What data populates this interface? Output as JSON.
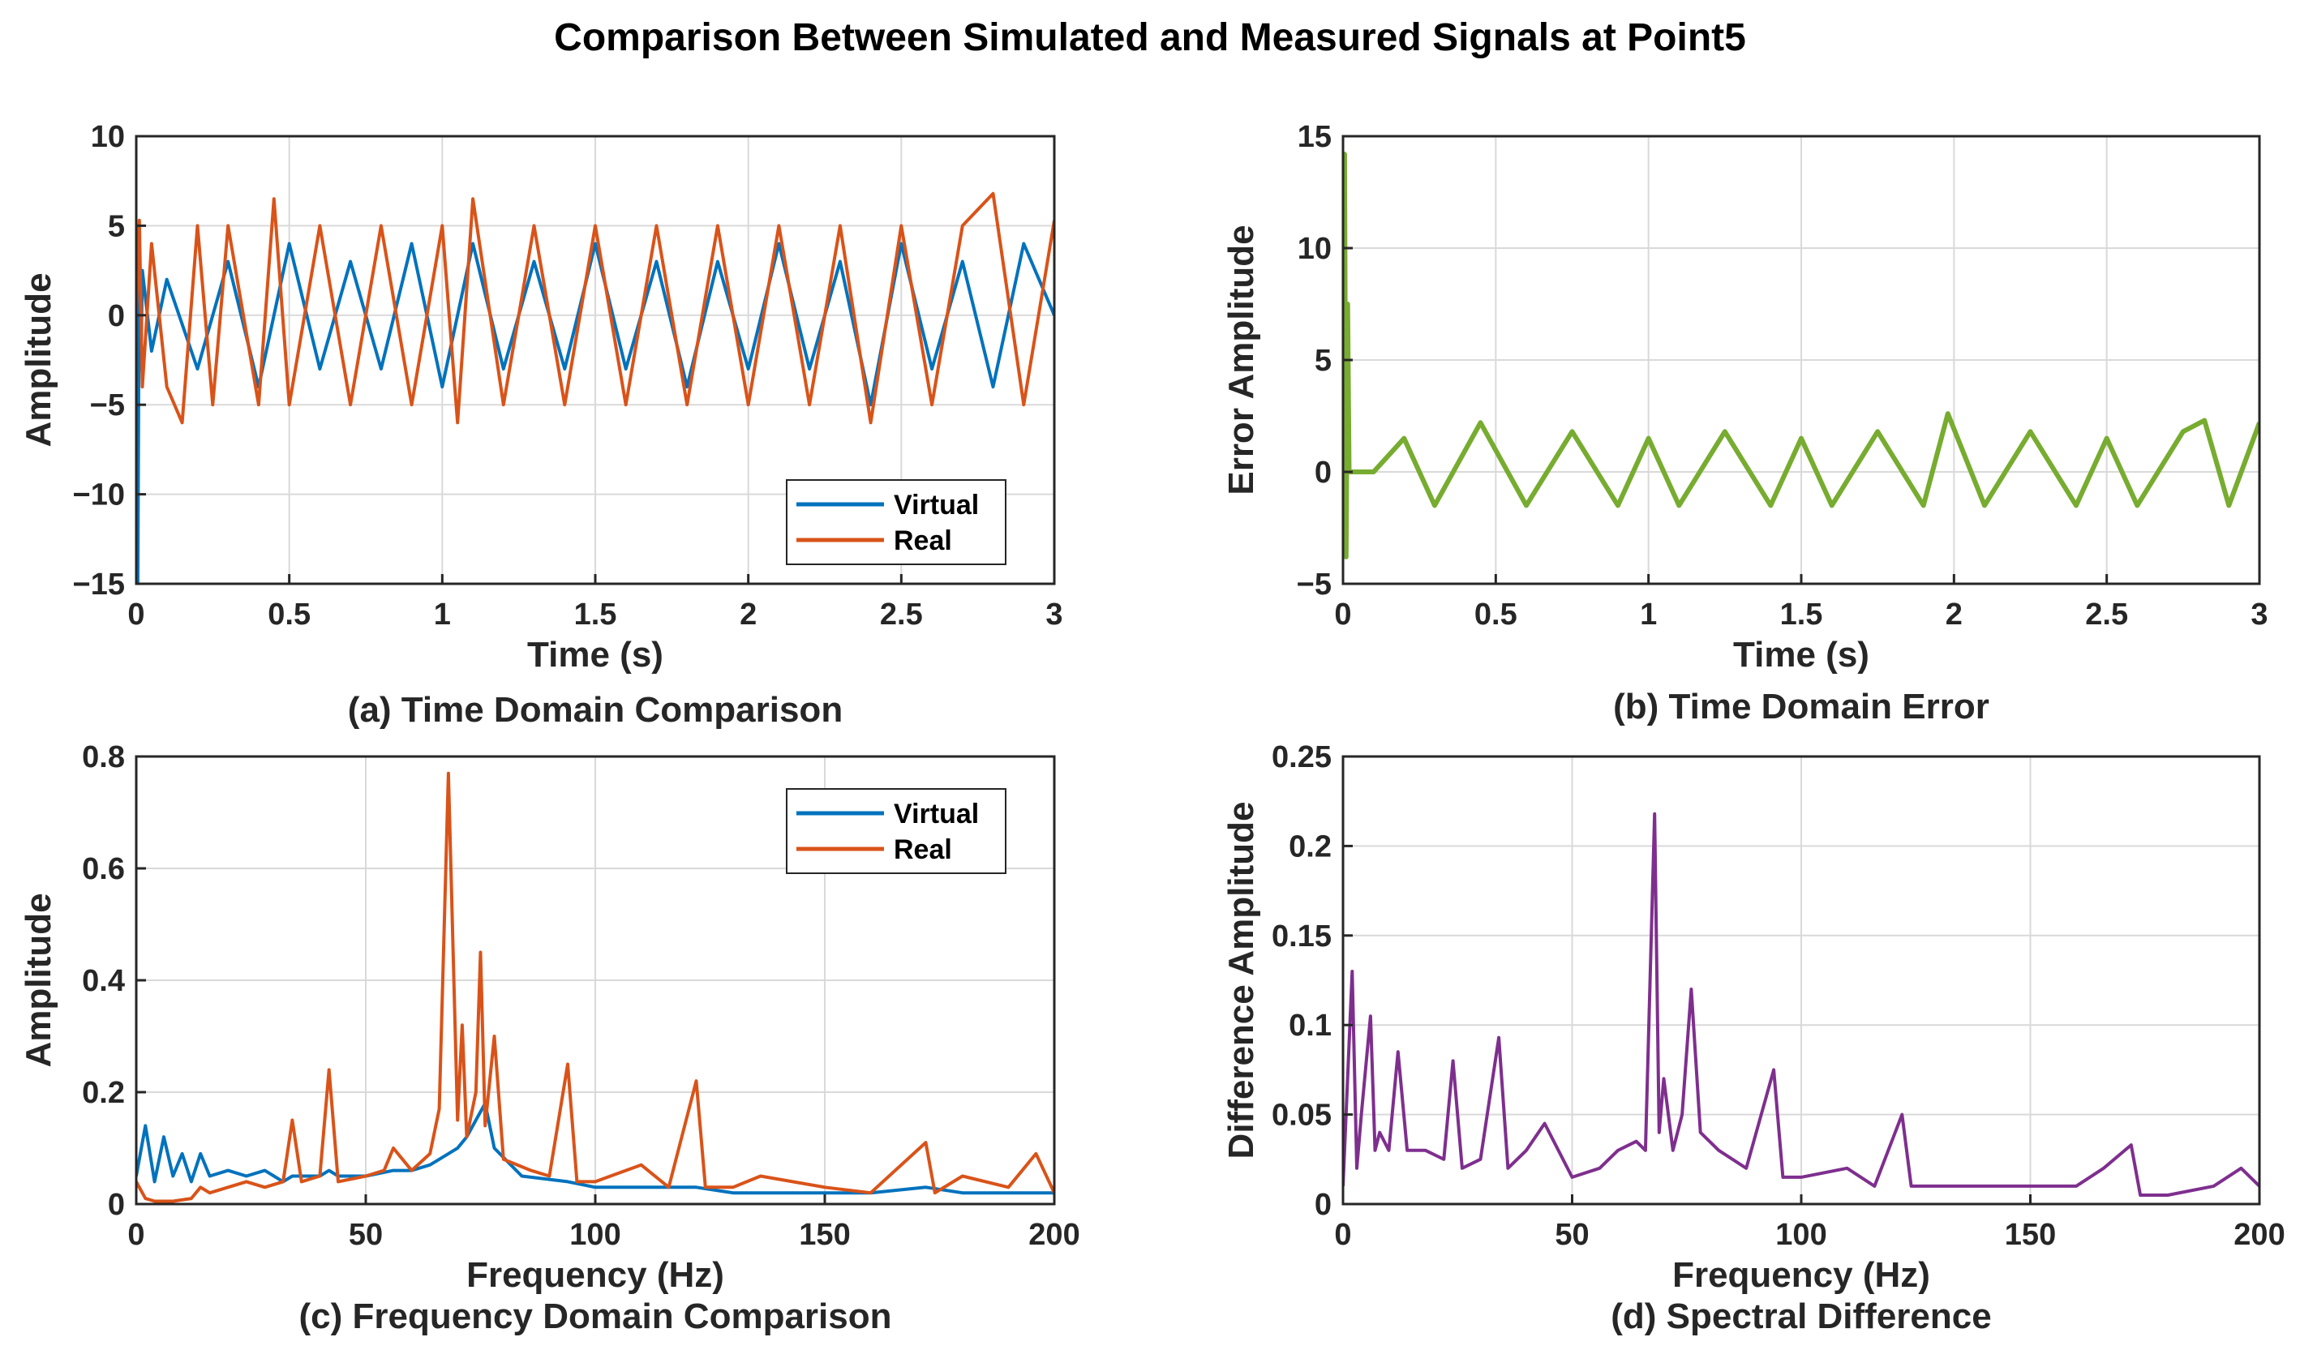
{
  "figure": {
    "title": "Comparison Between Simulated and Measured Signals at Point5"
  },
  "colors": {
    "virtual": "#0072BD",
    "real": "#D95319",
    "error": "#77AC30",
    "difference": "#7E2F8E"
  },
  "chart_data": [
    {
      "id": "a",
      "type": "line",
      "caption": "(a) Time Domain Comparison",
      "xlabel": "Time (s)",
      "ylabel": "Amplitude",
      "xlim": [
        0,
        3
      ],
      "ylim": [
        -15,
        10
      ],
      "xticks": [
        0,
        0.5,
        1,
        1.5,
        2,
        2.5,
        3
      ],
      "xtick_labels": [
        "0",
        "0.5",
        "1",
        "1.5",
        "2",
        "2.5",
        "3"
      ],
      "yticks": [
        -15,
        -10,
        -5,
        0,
        5,
        10
      ],
      "ytick_labels": [
        "−15",
        "−10",
        "−5",
        "0",
        "5",
        "10"
      ],
      "grid": true,
      "legend": {
        "position": "bottom-right",
        "entries": [
          "Virtual",
          "Real"
        ]
      },
      "series": [
        {
          "name": "Virtual",
          "color": "#0072BD",
          "x": [
            0,
            0.005,
            0.01,
            0.015,
            0.02,
            0.05,
            0.1,
            0.2,
            0.3,
            0.4,
            0.5,
            0.6,
            0.7,
            0.8,
            0.9,
            1.0,
            1.1,
            1.2,
            1.3,
            1.4,
            1.5,
            1.6,
            1.7,
            1.8,
            1.9,
            2.0,
            2.1,
            2.2,
            2.3,
            2.4,
            2.5,
            2.6,
            2.7,
            2.8,
            2.9,
            3.0
          ],
          "y": [
            0,
            -15,
            4.5,
            -3,
            2.5,
            -2,
            2,
            -3,
            3,
            -4,
            4,
            -3,
            3,
            -3,
            4,
            -4,
            4,
            -3,
            3,
            -3,
            4,
            -3,
            3,
            -4,
            3,
            -3,
            4,
            -3,
            3,
            -5,
            4,
            -3,
            3,
            -4,
            4,
            0
          ]
        },
        {
          "name": "Real",
          "color": "#D95319",
          "x": [
            0,
            0.01,
            0.02,
            0.05,
            0.1,
            0.15,
            0.2,
            0.25,
            0.3,
            0.4,
            0.45,
            0.5,
            0.6,
            0.7,
            0.8,
            0.9,
            1.0,
            1.05,
            1.1,
            1.2,
            1.3,
            1.4,
            1.5,
            1.6,
            1.7,
            1.8,
            1.9,
            2.0,
            2.1,
            2.2,
            2.3,
            2.4,
            2.5,
            2.6,
            2.7,
            2.8,
            2.9,
            3.0
          ],
          "y": [
            0,
            5.3,
            -4,
            4,
            -4,
            -6,
            5,
            -5,
            5,
            -5,
            6.5,
            -5,
            5,
            -5,
            5,
            -5,
            5,
            -6,
            6.5,
            -5,
            5,
            -5,
            5,
            -5,
            5,
            -5,
            5,
            -5,
            5,
            -5,
            5,
            -6,
            5,
            -5,
            5,
            6.8,
            -5,
            5.3
          ]
        }
      ]
    },
    {
      "id": "b",
      "type": "line",
      "caption": "(b) Time Domain Error",
      "xlabel": "Time (s)",
      "ylabel": "Error Amplitude",
      "xlim": [
        0,
        3
      ],
      "ylim": [
        -5,
        15
      ],
      "xticks": [
        0,
        0.5,
        1,
        1.5,
        2,
        2.5,
        3
      ],
      "xtick_labels": [
        "0",
        "0.5",
        "1",
        "1.5",
        "2",
        "2.5",
        "3"
      ],
      "yticks": [
        -5,
        0,
        5,
        10,
        15
      ],
      "ytick_labels": [
        "−5",
        "0",
        "5",
        "10",
        "15"
      ],
      "grid": true,
      "series": [
        {
          "color": "#77AC30",
          "x": [
            0,
            0.005,
            0.01,
            0.015,
            0.02,
            0.05,
            0.1,
            0.2,
            0.3,
            0.45,
            0.6,
            0.75,
            0.9,
            1.0,
            1.1,
            1.25,
            1.4,
            1.5,
            1.6,
            1.75,
            1.9,
            1.98,
            2.1,
            2.25,
            2.4,
            2.5,
            2.6,
            2.75,
            2.82,
            2.9,
            3.0
          ],
          "y": [
            0,
            14.2,
            -3.8,
            7.5,
            0,
            0,
            0,
            1.5,
            -1.5,
            2.2,
            -1.5,
            1.8,
            -1.5,
            1.5,
            -1.5,
            1.8,
            -1.5,
            1.5,
            -1.5,
            1.8,
            -1.5,
            2.6,
            -1.5,
            1.8,
            -1.5,
            1.5,
            -1.5,
            1.8,
            2.3,
            -1.5,
            2.2
          ]
        }
      ]
    },
    {
      "id": "c",
      "type": "line",
      "caption": "(c) Frequency Domain Comparison",
      "xlabel": "Frequency (Hz)",
      "ylabel": "Amplitude",
      "xlim": [
        0,
        200
      ],
      "ylim": [
        0,
        0.8
      ],
      "xticks": [
        0,
        50,
        100,
        150,
        200
      ],
      "xtick_labels": [
        "0",
        "50",
        "100",
        "150",
        "200"
      ],
      "yticks": [
        0,
        0.2,
        0.4,
        0.6,
        0.8
      ],
      "ytick_labels": [
        "0",
        "0.2",
        "0.4",
        "0.6",
        "0.8"
      ],
      "grid": true,
      "legend": {
        "position": "top-right",
        "entries": [
          "Virtual",
          "Real"
        ]
      },
      "series": [
        {
          "name": "Virtual",
          "color": "#0072BD",
          "x": [
            0,
            2,
            4,
            6,
            8,
            10,
            12,
            14,
            16,
            20,
            24,
            28,
            32,
            34,
            36,
            40,
            42,
            44,
            50,
            56,
            60,
            64,
            66,
            68,
            70,
            72,
            74,
            76,
            78,
            84,
            94,
            100,
            110,
            122,
            130,
            140,
            150,
            160,
            172,
            180,
            190,
            196,
            200
          ],
          "y": [
            0.05,
            0.14,
            0.04,
            0.12,
            0.05,
            0.09,
            0.04,
            0.09,
            0.05,
            0.06,
            0.05,
            0.06,
            0.04,
            0.05,
            0.05,
            0.05,
            0.06,
            0.05,
            0.05,
            0.06,
            0.06,
            0.07,
            0.08,
            0.09,
            0.1,
            0.12,
            0.15,
            0.18,
            0.1,
            0.05,
            0.04,
            0.03,
            0.03,
            0.03,
            0.02,
            0.02,
            0.02,
            0.02,
            0.03,
            0.02,
            0.02,
            0.02,
            0.02
          ]
        },
        {
          "name": "Real",
          "color": "#D95319",
          "x": [
            0,
            2,
            4,
            8,
            12,
            14,
            16,
            20,
            24,
            28,
            32,
            34,
            36,
            40,
            42,
            44,
            50,
            54,
            56,
            60,
            64,
            66,
            68,
            70,
            71,
            72,
            74,
            75,
            76,
            78,
            80,
            86,
            90,
            94,
            96,
            100,
            110,
            116,
            122,
            124,
            130,
            136,
            150,
            160,
            172,
            174,
            180,
            190,
            196,
            200
          ],
          "y": [
            0.04,
            0.01,
            0.005,
            0.005,
            0.01,
            0.03,
            0.02,
            0.03,
            0.04,
            0.03,
            0.04,
            0.15,
            0.04,
            0.05,
            0.24,
            0.04,
            0.05,
            0.06,
            0.1,
            0.06,
            0.09,
            0.17,
            0.77,
            0.15,
            0.32,
            0.12,
            0.2,
            0.45,
            0.14,
            0.3,
            0.08,
            0.06,
            0.05,
            0.25,
            0.04,
            0.04,
            0.07,
            0.03,
            0.22,
            0.03,
            0.03,
            0.05,
            0.03,
            0.02,
            0.11,
            0.02,
            0.05,
            0.03,
            0.09,
            0.02
          ]
        }
      ]
    },
    {
      "id": "d",
      "type": "line",
      "caption": "(d) Spectral Difference",
      "xlabel": "Frequency (Hz)",
      "ylabel": "Difference Amplitude",
      "xlim": [
        0,
        200
      ],
      "ylim": [
        0,
        0.25
      ],
      "xticks": [
        0,
        50,
        100,
        150,
        200
      ],
      "xtick_labels": [
        "0",
        "50",
        "100",
        "150",
        "200"
      ],
      "yticks": [
        0,
        0.05,
        0.1,
        0.15,
        0.2,
        0.25
      ],
      "ytick_labels": [
        "0",
        "0.05",
        "0.1",
        "0.15",
        "0.2",
        "0.25"
      ],
      "grid": true,
      "series": [
        {
          "color": "#7E2F8E",
          "x": [
            0,
            2,
            3,
            4,
            6,
            7,
            8,
            10,
            12,
            14,
            18,
            22,
            24,
            26,
            30,
            34,
            36,
            40,
            44,
            50,
            56,
            60,
            64,
            66,
            68,
            69,
            70,
            72,
            74,
            76,
            78,
            82,
            88,
            94,
            96,
            100,
            110,
            116,
            122,
            124,
            130,
            140,
            150,
            160,
            166,
            172,
            174,
            180,
            190,
            196,
            200
          ],
          "y": [
            0.01,
            0.13,
            0.02,
            0.05,
            0.105,
            0.03,
            0.04,
            0.03,
            0.085,
            0.03,
            0.03,
            0.025,
            0.08,
            0.02,
            0.025,
            0.093,
            0.02,
            0.03,
            0.045,
            0.015,
            0.02,
            0.03,
            0.035,
            0.03,
            0.218,
            0.04,
            0.07,
            0.03,
            0.05,
            0.12,
            0.04,
            0.03,
            0.02,
            0.075,
            0.015,
            0.015,
            0.02,
            0.01,
            0.05,
            0.01,
            0.01,
            0.01,
            0.01,
            0.01,
            0.02,
            0.033,
            0.005,
            0.005,
            0.01,
            0.02,
            0.01
          ]
        }
      ]
    }
  ]
}
